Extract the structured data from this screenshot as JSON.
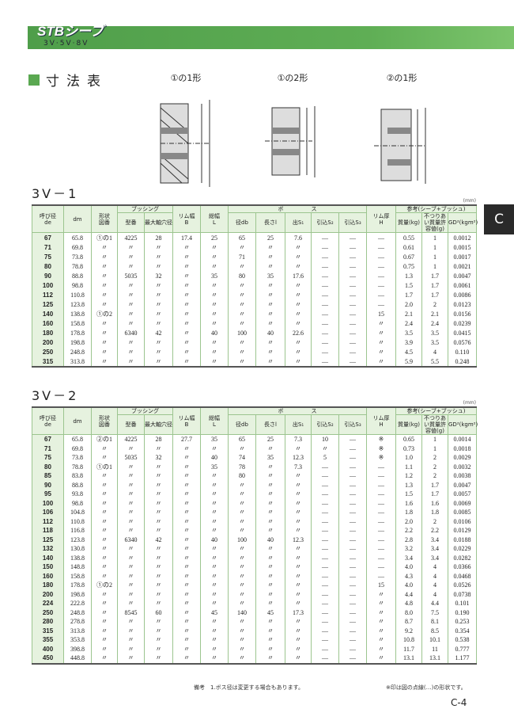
{
  "header": {
    "logo": "STBシーブ",
    "subtitle": "3V·5V·8V"
  },
  "section_title": "寸法表",
  "figures": [
    "①の1形",
    "①の2形",
    "②の1形"
  ],
  "side_tab": "C",
  "unit": "(mm)",
  "headers": {
    "de_top": "呼び径",
    "de": "de",
    "dm": "dm",
    "shape_top": "形状",
    "shape": "図番",
    "bushing": "ブッシング",
    "model": "型番",
    "max_bore": "最大軸穴径",
    "rim_w_top": "リム幅",
    "rim_w": "B",
    "total_w_top": "総幅",
    "total_w": "L",
    "boss": "ボ　　　　　ス",
    "db": "径db",
    "l": "長さl",
    "s1": "出S₁",
    "s2": "引込S₂",
    "s3": "引込S₃",
    "rim_t_top": "リム厚",
    "rim_t": "H",
    "ref": "参考(シーブ+ブッシュ)",
    "mass": "質量(kg)",
    "unbalance": "不つりあい質量許容値(g)",
    "gd2": "GD²(kgm²)"
  },
  "tables": [
    {
      "title": "3V－1",
      "rows": [
        [
          "67",
          "65.8",
          "①の1",
          "4225",
          "28",
          "17.4",
          "25",
          "65",
          "25",
          "7.6",
          "—",
          "—",
          "—",
          "0.55",
          "1",
          "0.0012"
        ],
        [
          "71",
          "69.8",
          "〃",
          "〃",
          "〃",
          "〃",
          "〃",
          "〃",
          "〃",
          "〃",
          "—",
          "—",
          "—",
          "0.61",
          "1",
          "0.0015"
        ],
        [
          "75",
          "73.8",
          "〃",
          "〃",
          "〃",
          "〃",
          "〃",
          "71",
          "〃",
          "〃",
          "—",
          "—",
          "—",
          "0.67",
          "1",
          "0.0017"
        ],
        [
          "80",
          "78.8",
          "〃",
          "〃",
          "〃",
          "〃",
          "〃",
          "〃",
          "〃",
          "〃",
          "—",
          "—",
          "—",
          "0.75",
          "1",
          "0.0021"
        ],
        [
          "90",
          "88.8",
          "〃",
          "5035",
          "32",
          "〃",
          "35",
          "80",
          "35",
          "17.6",
          "—",
          "—",
          "—",
          "1.3",
          "1.7",
          "0.0047"
        ],
        [
          "100",
          "98.8",
          "〃",
          "〃",
          "〃",
          "〃",
          "〃",
          "〃",
          "〃",
          "〃",
          "—",
          "—",
          "—",
          "1.5",
          "1.7",
          "0.0061"
        ],
        [
          "112",
          "110.8",
          "〃",
          "〃",
          "〃",
          "〃",
          "〃",
          "〃",
          "〃",
          "〃",
          "—",
          "—",
          "—",
          "1.7",
          "1.7",
          "0.0086"
        ],
        [
          "125",
          "123.8",
          "〃",
          "〃",
          "〃",
          "〃",
          "〃",
          "〃",
          "〃",
          "〃",
          "—",
          "—",
          "—",
          "2.0",
          "2",
          "0.0123"
        ],
        [
          "140",
          "138.8",
          "①の2",
          "〃",
          "〃",
          "〃",
          "〃",
          "〃",
          "〃",
          "〃",
          "—",
          "—",
          "15",
          "2.1",
          "2.1",
          "0.0156"
        ],
        [
          "160",
          "158.8",
          "〃",
          "〃",
          "〃",
          "〃",
          "〃",
          "〃",
          "〃",
          "〃",
          "—",
          "—",
          "〃",
          "2.4",
          "2.4",
          "0.0239"
        ],
        [
          "180",
          "178.8",
          "〃",
          "6340",
          "42",
          "〃",
          "40",
          "100",
          "40",
          "22.6",
          "—",
          "—",
          "〃",
          "3.5",
          "3.5",
          "0.0415"
        ],
        [
          "200",
          "198.8",
          "〃",
          "〃",
          "〃",
          "〃",
          "〃",
          "〃",
          "〃",
          "〃",
          "—",
          "—",
          "〃",
          "3.9",
          "3.5",
          "0.0576"
        ],
        [
          "250",
          "248.8",
          "〃",
          "〃",
          "〃",
          "〃",
          "〃",
          "〃",
          "〃",
          "〃",
          "—",
          "—",
          "〃",
          "4.5",
          "4",
          "0.110"
        ],
        [
          "315",
          "313.8",
          "〃",
          "〃",
          "〃",
          "〃",
          "〃",
          "〃",
          "〃",
          "〃",
          "—",
          "—",
          "〃",
          "5.9",
          "5.5",
          "0.248"
        ]
      ]
    },
    {
      "title": "3V－2",
      "rows": [
        [
          "67",
          "65.8",
          "②の1",
          "4225",
          "28",
          "27.7",
          "35",
          "65",
          "25",
          "7.3",
          "10",
          "—",
          "※",
          "0.65",
          "1",
          "0.0014"
        ],
        [
          "71",
          "69.8",
          "〃",
          "〃",
          "〃",
          "〃",
          "〃",
          "〃",
          "〃",
          "〃",
          "〃",
          "—",
          "※",
          "0.73",
          "1",
          "0.0018"
        ],
        [
          "75",
          "73.8",
          "〃",
          "5035",
          "32",
          "〃",
          "40",
          "74",
          "35",
          "12.3",
          "5",
          "—",
          "※",
          "1.0",
          "2",
          "0.0029"
        ],
        [
          "80",
          "78.8",
          "①の1",
          "〃",
          "〃",
          "〃",
          "35",
          "78",
          "〃",
          "7.3",
          "—",
          "—",
          "—",
          "1.1",
          "2",
          "0.0032"
        ],
        [
          "85",
          "83.8",
          "〃",
          "〃",
          "〃",
          "〃",
          "〃",
          "80",
          "〃",
          "〃",
          "—",
          "—",
          "—",
          "1.2",
          "2",
          "0.0038"
        ],
        [
          "90",
          "88.8",
          "〃",
          "〃",
          "〃",
          "〃",
          "〃",
          "〃",
          "〃",
          "〃",
          "—",
          "—",
          "—",
          "1.3",
          "1.7",
          "0.0047"
        ],
        [
          "95",
          "93.8",
          "〃",
          "〃",
          "〃",
          "〃",
          "〃",
          "〃",
          "〃",
          "〃",
          "—",
          "—",
          "—",
          "1.5",
          "1.7",
          "0.0057"
        ],
        [
          "100",
          "98.8",
          "〃",
          "〃",
          "〃",
          "〃",
          "〃",
          "〃",
          "〃",
          "〃",
          "—",
          "—",
          "—",
          "1.6",
          "1.6",
          "0.0069"
        ],
        [
          "106",
          "104.8",
          "〃",
          "〃",
          "〃",
          "〃",
          "〃",
          "〃",
          "〃",
          "〃",
          "—",
          "—",
          "—",
          "1.8",
          "1.8",
          "0.0085"
        ],
        [
          "112",
          "110.8",
          "〃",
          "〃",
          "〃",
          "〃",
          "〃",
          "〃",
          "〃",
          "〃",
          "—",
          "—",
          "—",
          "2.0",
          "2",
          "0.0106"
        ],
        [
          "118",
          "116.8",
          "〃",
          "〃",
          "〃",
          "〃",
          "〃",
          "〃",
          "〃",
          "〃",
          "—",
          "—",
          "—",
          "2.2",
          "2.2",
          "0.0129"
        ],
        [
          "125",
          "123.8",
          "〃",
          "6340",
          "42",
          "〃",
          "40",
          "100",
          "40",
          "12.3",
          "—",
          "—",
          "—",
          "2.8",
          "3.4",
          "0.0188"
        ],
        [
          "132",
          "130.8",
          "〃",
          "〃",
          "〃",
          "〃",
          "〃",
          "〃",
          "〃",
          "〃",
          "—",
          "—",
          "—",
          "3.2",
          "3.4",
          "0.0229"
        ],
        [
          "140",
          "138.8",
          "〃",
          "〃",
          "〃",
          "〃",
          "〃",
          "〃",
          "〃",
          "〃",
          "—",
          "—",
          "—",
          "3.4",
          "3.4",
          "0.0282"
        ],
        [
          "150",
          "148.8",
          "〃",
          "〃",
          "〃",
          "〃",
          "〃",
          "〃",
          "〃",
          "〃",
          "—",
          "—",
          "—",
          "4.0",
          "4",
          "0.0366"
        ],
        [
          "160",
          "158.8",
          "〃",
          "〃",
          "〃",
          "〃",
          "〃",
          "〃",
          "〃",
          "〃",
          "—",
          "—",
          "—",
          "4.3",
          "4",
          "0.0468"
        ],
        [
          "180",
          "178.8",
          "①の2",
          "〃",
          "〃",
          "〃",
          "〃",
          "〃",
          "〃",
          "〃",
          "—",
          "—",
          "15",
          "4.0",
          "4",
          "0.0526"
        ],
        [
          "200",
          "198.8",
          "〃",
          "〃",
          "〃",
          "〃",
          "〃",
          "〃",
          "〃",
          "〃",
          "—",
          "—",
          "〃",
          "4.4",
          "4",
          "0.0738"
        ],
        [
          "224",
          "222.8",
          "〃",
          "〃",
          "〃",
          "〃",
          "〃",
          "〃",
          "〃",
          "〃",
          "—",
          "—",
          "〃",
          "4.8",
          "4.4",
          "0.101"
        ],
        [
          "250",
          "248.8",
          "〃",
          "8545",
          "60",
          "〃",
          "45",
          "140",
          "45",
          "17.3",
          "—",
          "—",
          "〃",
          "8.0",
          "7.5",
          "0.190"
        ],
        [
          "280",
          "278.8",
          "〃",
          "〃",
          "〃",
          "〃",
          "〃",
          "〃",
          "〃",
          "〃",
          "—",
          "—",
          "〃",
          "8.7",
          "8.1",
          "0.253"
        ],
        [
          "315",
          "313.8",
          "〃",
          "〃",
          "〃",
          "〃",
          "〃",
          "〃",
          "〃",
          "〃",
          "—",
          "—",
          "〃",
          "9.2",
          "8.5",
          "0.354"
        ],
        [
          "355",
          "353.8",
          "〃",
          "〃",
          "〃",
          "〃",
          "〃",
          "〃",
          "〃",
          "〃",
          "—",
          "—",
          "〃",
          "10.8",
          "10.1",
          "0.538"
        ],
        [
          "400",
          "398.8",
          "〃",
          "〃",
          "〃",
          "〃",
          "〃",
          "〃",
          "〃",
          "〃",
          "—",
          "—",
          "〃",
          "11.7",
          "11",
          "0.777"
        ],
        [
          "450",
          "448.8",
          "〃",
          "〃",
          "〃",
          "〃",
          "〃",
          "〃",
          "〃",
          "〃",
          "—",
          "—",
          "〃",
          "13.1",
          "13.1",
          "1.177"
        ]
      ]
    }
  ],
  "notes": {
    "remark": "備考　1.ボス径は変更する場合もあります。",
    "asterisk": "※印は図の点線(…)の形状です。"
  },
  "page_number": "C-4",
  "colors": {
    "brand_green": "#5aa851",
    "header_fill": "#e6f2df"
  }
}
